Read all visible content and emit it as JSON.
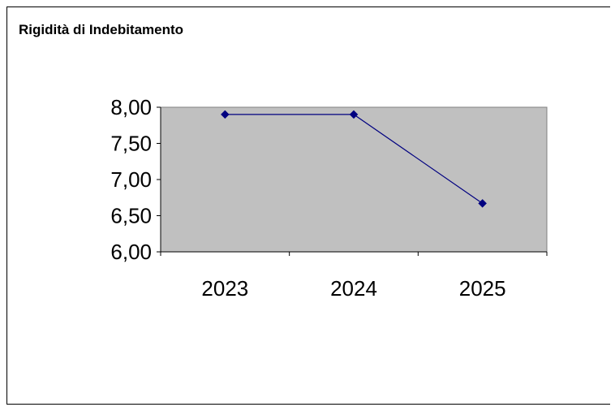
{
  "chart_data": {
    "type": "line",
    "title": "Rigidità di Indebitamento",
    "categories": [
      "2023",
      "2024",
      "2025"
    ],
    "series": [
      {
        "values": [
          7.9,
          7.9,
          6.67
        ]
      }
    ],
    "y_tick_labels": [
      "8,00",
      "7,50",
      "7,00",
      "6,50",
      "6,00"
    ],
    "y_ticks": [
      8.0,
      7.5,
      7.0,
      6.5,
      6.0
    ],
    "ylim": [
      6.0,
      8.0
    ],
    "grid": false,
    "legend": "none",
    "colors": {
      "plot_background": "#c0c0c0",
      "series_line": "#000080",
      "axis": "#000000"
    }
  }
}
